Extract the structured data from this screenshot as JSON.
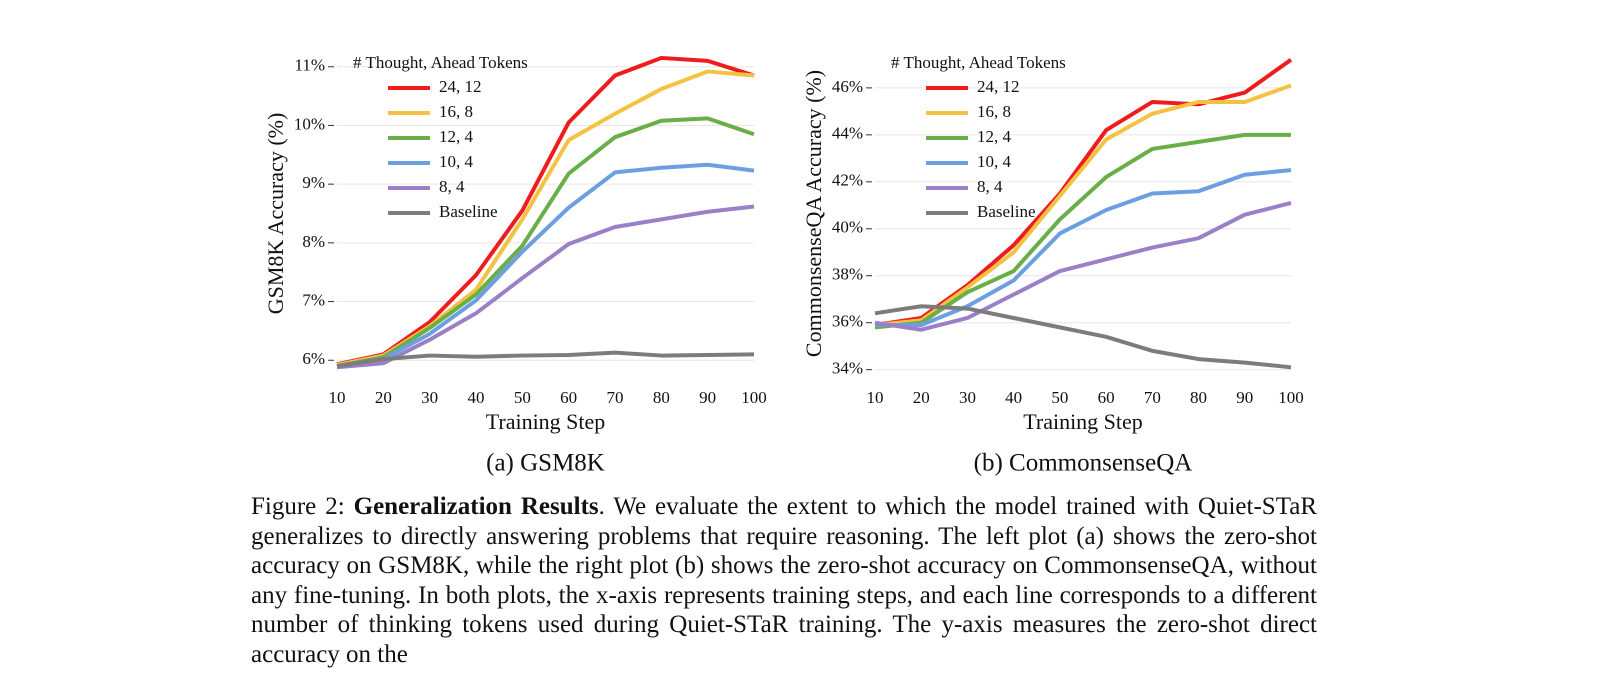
{
  "chart_data": [
    {
      "type": "line",
      "caption": "(a) GSM8K",
      "xlabel": "Training Step",
      "ylabel": "GSM8K Accuracy (%)",
      "legend_title": "# Thought, Ahead Tokens",
      "legend": "upper left",
      "grid": true,
      "x": [
        10,
        20,
        30,
        40,
        50,
        60,
        70,
        80,
        90,
        100
      ],
      "xlim": [
        10,
        100
      ],
      "xticks": [
        10,
        20,
        30,
        40,
        50,
        60,
        70,
        80,
        90,
        100
      ],
      "ylim": [
        5.8,
        11.2
      ],
      "yticks": [
        {
          "value": 6,
          "label": "6%"
        },
        {
          "value": 7,
          "label": "7%"
        },
        {
          "value": 8,
          "label": "8%"
        },
        {
          "value": 9,
          "label": "9%"
        },
        {
          "value": 10,
          "label": "10%"
        },
        {
          "value": 11,
          "label": "11%"
        }
      ],
      "series": [
        {
          "name": "24, 12",
          "color": "#ee1c1c",
          "values": [
            5.93,
            6.1,
            6.65,
            7.45,
            8.55,
            10.05,
            10.85,
            11.15,
            11.1,
            10.85
          ]
        },
        {
          "name": "16, 8",
          "color": "#f4c243",
          "values": [
            5.92,
            6.08,
            6.58,
            7.2,
            8.4,
            9.75,
            10.2,
            10.62,
            10.92,
            10.85
          ]
        },
        {
          "name": "12, 4",
          "color": "#6aae4a",
          "values": [
            5.9,
            6.05,
            6.55,
            7.12,
            7.95,
            9.18,
            9.8,
            10.08,
            10.12,
            9.85
          ]
        },
        {
          "name": "10, 4",
          "color": "#6b9fe2",
          "values": [
            5.9,
            6.02,
            6.45,
            7.02,
            7.85,
            8.6,
            9.2,
            9.28,
            9.33,
            9.23
          ]
        },
        {
          "name": "8, 4",
          "color": "#9a80c6",
          "values": [
            5.88,
            5.95,
            6.35,
            6.8,
            7.4,
            7.98,
            8.27,
            8.4,
            8.53,
            8.62
          ]
        },
        {
          "name": "Baseline",
          "color": "#7c7c7c",
          "values": [
            5.9,
            6.02,
            6.08,
            6.06,
            6.08,
            6.09,
            6.13,
            6.08,
            6.09,
            6.1
          ]
        }
      ]
    },
    {
      "type": "line",
      "caption": "(b) CommonsenseQA",
      "xlabel": "Training Step",
      "ylabel": "CommonsenseQA Accuracy (%)",
      "legend_title": "# Thought, Ahead Tokens",
      "legend": "upper left",
      "grid": true,
      "x": [
        10,
        20,
        30,
        40,
        50,
        60,
        70,
        80,
        90,
        100
      ],
      "xlim": [
        10,
        100
      ],
      "xticks": [
        10,
        20,
        30,
        40,
        50,
        60,
        70,
        80,
        90,
        100
      ],
      "ylim": [
        33.9,
        47.4
      ],
      "yticks": [
        {
          "value": 34,
          "label": "34%"
        },
        {
          "value": 36,
          "label": "36%"
        },
        {
          "value": 38,
          "label": "38%"
        },
        {
          "value": 40,
          "label": "40%"
        },
        {
          "value": 42,
          "label": "42%"
        },
        {
          "value": 44,
          "label": "44%"
        },
        {
          "value": 46,
          "label": "46%"
        }
      ],
      "series": [
        {
          "name": "24, 12",
          "color": "#ee1c1c",
          "values": [
            35.9,
            36.2,
            37.6,
            39.3,
            41.5,
            44.2,
            45.4,
            45.3,
            45.8,
            47.2
          ]
        },
        {
          "name": "16, 8",
          "color": "#f4c243",
          "values": [
            35.9,
            36.1,
            37.5,
            39.0,
            41.4,
            43.8,
            44.9,
            45.4,
            45.4,
            46.1
          ]
        },
        {
          "name": "12, 4",
          "color": "#6aae4a",
          "values": [
            35.8,
            36.0,
            37.3,
            38.2,
            40.4,
            42.2,
            43.4,
            43.7,
            44.0,
            44.0
          ]
        },
        {
          "name": "10, 4",
          "color": "#6b9fe2",
          "values": [
            35.9,
            35.9,
            36.7,
            37.8,
            39.8,
            40.8,
            41.5,
            41.6,
            42.3,
            42.5
          ]
        },
        {
          "name": "8, 4",
          "color": "#9a80c6",
          "values": [
            36.0,
            35.7,
            36.2,
            37.2,
            38.2,
            38.7,
            39.2,
            39.6,
            40.6,
            41.1
          ]
        },
        {
          "name": "Baseline",
          "color": "#7c7c7c",
          "values": [
            36.4,
            36.7,
            36.6,
            36.2,
            35.8,
            35.4,
            34.8,
            34.45,
            34.3,
            34.1
          ]
        }
      ]
    }
  ],
  "caption": {
    "label": "Figure 2:",
    "title": "Generalization Results",
    "text": ".  We evaluate the extent to which the model trained with Quiet-STaR generalizes to directly answering problems that require reasoning. The left plot (a) shows the zero-shot accuracy on GSM8K, while the right plot (b) shows the zero-shot accuracy on CommonsenseQA, without any fine-tuning. In both plots, the x-axis represents training steps, and each line corresponds to a different number of thinking tokens used during Quiet-STaR training. The y-axis measures the zero-shot direct accuracy on the"
  }
}
